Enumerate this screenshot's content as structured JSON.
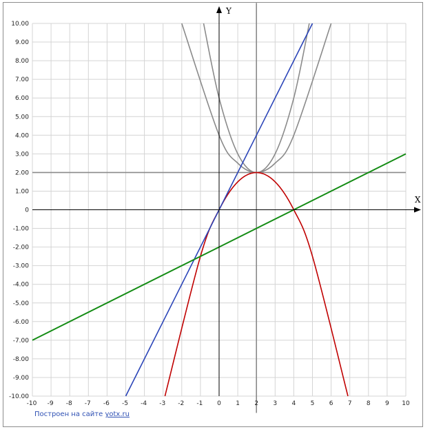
{
  "chart_data": {
    "type": "line",
    "x_axis_label": "X",
    "y_axis_label": "Y",
    "xlim": [
      -10,
      10
    ],
    "ylim": [
      -10,
      10
    ],
    "x_ticks": [
      "-10",
      "-9",
      "-8",
      "-7",
      "-6",
      "-5",
      "-4",
      "-3",
      "-2",
      "-1",
      "0",
      "1",
      "2",
      "3",
      "4",
      "5",
      "6",
      "7",
      "8",
      "9",
      "10"
    ],
    "y_ticks": [
      "10.00",
      "9.00",
      "8.00",
      "7.00",
      "6.00",
      "5.00",
      "4.00",
      "3.00",
      "2.00",
      "1.00",
      "0",
      "-1.00",
      "-2.00",
      "-3.00",
      "-4.00",
      "-5.00",
      "-6.00",
      "-7.00",
      "-8.00",
      "-9.00",
      "-10.00"
    ],
    "grid": true,
    "series": [
      {
        "color": "#8a8a8a",
        "expr": "(x-2)^2+2",
        "points": [
          [
            -0.83,
            10
          ],
          [
            0,
            6
          ],
          [
            1,
            3
          ],
          [
            2,
            2
          ],
          [
            3,
            3
          ],
          [
            4,
            6
          ],
          [
            4.83,
            10
          ]
        ]
      },
      {
        "color": "#8a8a8a",
        "expr": "0.5(x-2)^2+2",
        "points": [
          [
            -2,
            10
          ],
          [
            0,
            4
          ],
          [
            1,
            2.5
          ],
          [
            2,
            2
          ],
          [
            3,
            2.5
          ],
          [
            4,
            4
          ],
          [
            6,
            10
          ]
        ]
      },
      {
        "color": "#8a8a8a",
        "expr": "y=2",
        "points": [
          [
            -10,
            2
          ],
          [
            10,
            2
          ]
        ]
      },
      {
        "color": "#8a8a8a",
        "expr": "x=2",
        "points": [
          [
            2,
            -10.9
          ],
          [
            2,
            11.1
          ]
        ]
      },
      {
        "color": "#c00000",
        "expr": "-0.5(x-2)^2+2",
        "points": [
          [
            -2.9,
            -10
          ],
          [
            -1,
            -2.5
          ],
          [
            0,
            0
          ],
          [
            1,
            1.5
          ],
          [
            2,
            2
          ],
          [
            3,
            1.5
          ],
          [
            4,
            0
          ],
          [
            5,
            -2.5
          ],
          [
            6.9,
            -10
          ]
        ]
      },
      {
        "color": "#2a44b8",
        "expr": "y=2x",
        "points": [
          [
            -5,
            -10
          ],
          [
            0,
            0
          ],
          [
            5,
            10
          ]
        ]
      },
      {
        "color": "#148c14",
        "expr": "y=0.5x-2",
        "points": [
          [
            -10,
            -7
          ],
          [
            0,
            -2
          ],
          [
            4,
            0
          ],
          [
            10,
            3
          ]
        ]
      }
    ]
  },
  "footer": {
    "text": "Построен на сайте",
    "link": "yotx.ru"
  }
}
